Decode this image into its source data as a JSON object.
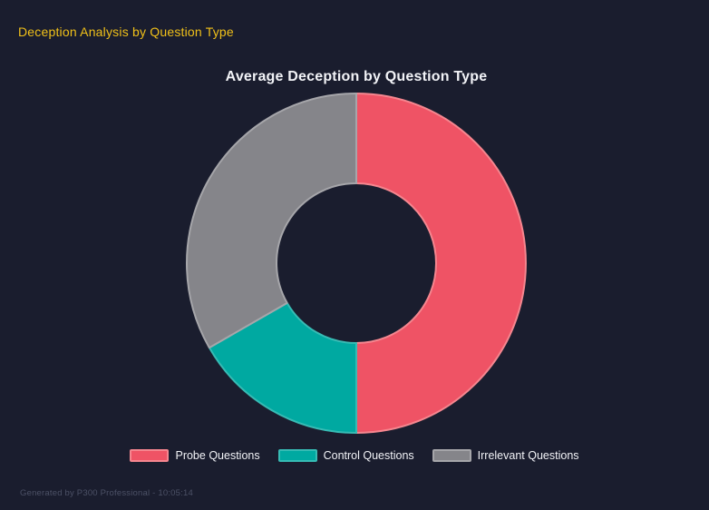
{
  "page": {
    "title": "Deception Analysis by Question Type",
    "footer": "Generated by P300 Professional - 10:05:14"
  },
  "chart_data": {
    "type": "pie",
    "variant": "doughnut",
    "title": "Average Deception by Question Type",
    "labels": [
      "Probe Questions",
      "Control Questions",
      "Irrelevant Questions"
    ],
    "values_percent": [
      50.0,
      16.7,
      33.3
    ],
    "colors": [
      "#EF5365",
      "#00A9A1",
      "#85858A"
    ],
    "border_colors": [
      "#F5868F",
      "#37BBB4",
      "#A6A6AA"
    ],
    "legend_position": "bottom",
    "cutout_ratio": 0.47,
    "start_angle_deg": 0,
    "direction": "clockwise"
  },
  "theme": {
    "background": "#1A1D2E",
    "heading_color": "#F0C019",
    "chart_title_color": "#F2F3F7",
    "legend_text_color": "#F2F3F7",
    "footer_color": "#4C5166"
  }
}
